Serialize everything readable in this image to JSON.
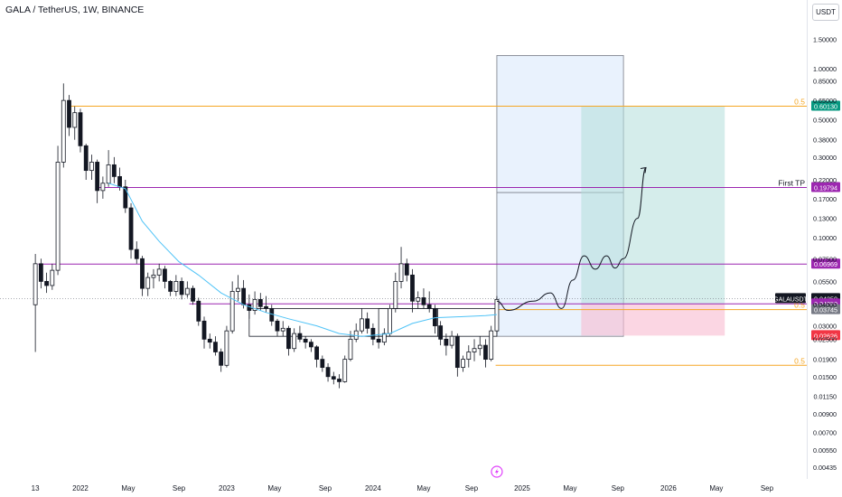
{
  "header": {
    "title": "GALA / TetherUS, 1W, BINANCE",
    "currency": "USDT"
  },
  "colors": {
    "up": "#131722",
    "down": "#131722",
    "orange": "#f5a623",
    "purple": "#9c27b0",
    "ma": "#4fc3f7",
    "target": "#b2dfdb",
    "stop": "#f8bbd0",
    "projection": "#cfe3fb",
    "green_tag": "#089981",
    "red_tag": "#f23645",
    "ticker_tag": "#131722"
  },
  "chart_data": {
    "type": "candlestick",
    "title": "GALA / TetherUS, 1W, BINANCE",
    "y_scale": "log",
    "ylim": [
      0.0042,
      2.0
    ],
    "xlim": [
      "2021-08-01",
      "2026-12-15"
    ],
    "x_ticks": [
      {
        "label": "13",
        "date": "2021-09-13"
      },
      {
        "label": "2022",
        "date": "2022-01-03"
      },
      {
        "label": "May",
        "date": "2022-05-02"
      },
      {
        "label": "Sep",
        "date": "2022-09-05"
      },
      {
        "label": "2023",
        "date": "2023-01-02"
      },
      {
        "label": "May",
        "date": "2023-05-01"
      },
      {
        "label": "Sep",
        "date": "2023-09-04"
      },
      {
        "label": "2024",
        "date": "2024-01-01"
      },
      {
        "label": "May",
        "date": "2024-05-06"
      },
      {
        "label": "Sep",
        "date": "2024-09-02"
      },
      {
        "label": "2025",
        "date": "2025-01-06"
      },
      {
        "label": "May",
        "date": "2025-05-05"
      },
      {
        "label": "Sep",
        "date": "2025-09-01"
      },
      {
        "label": "2026",
        "date": "2026-01-05"
      },
      {
        "label": "May",
        "date": "2026-05-04"
      },
      {
        "label": "Sep",
        "date": "2026-09-07"
      }
    ],
    "y_ticks": [
      "1.50000",
      "1.00000",
      "0.85000",
      "0.65000",
      "0.50000",
      "0.38000",
      "0.30000",
      "0.22000",
      "0.17000",
      "0.13000",
      "0.10000",
      "0.07500",
      "0.05500",
      "0.04000",
      "0.03000",
      "0.02500",
      "0.01900",
      "0.01500",
      "0.01150",
      "0.00900",
      "0.00700",
      "0.00550",
      "0.00435"
    ],
    "series": [
      {
        "type": "candlestick",
        "points": [
          [
            "2021-09-13",
            0.04,
            0.08,
            0.021,
            0.07
          ],
          [
            "2021-09-27",
            0.07,
            0.075,
            0.05,
            0.055
          ],
          [
            "2021-10-11",
            0.055,
            0.062,
            0.047,
            0.052
          ],
          [
            "2021-10-25",
            0.052,
            0.07,
            0.049,
            0.064
          ],
          [
            "2021-11-08",
            0.064,
            0.35,
            0.06,
            0.28
          ],
          [
            "2021-11-22",
            0.28,
            0.82,
            0.26,
            0.65
          ],
          [
            "2021-12-06",
            0.65,
            0.7,
            0.4,
            0.45
          ],
          [
            "2021-12-20",
            0.45,
            0.6,
            0.38,
            0.55
          ],
          [
            "2022-01-03",
            0.55,
            0.58,
            0.32,
            0.35
          ],
          [
            "2022-01-17",
            0.35,
            0.36,
            0.22,
            0.25
          ],
          [
            "2022-01-31",
            0.25,
            0.31,
            0.22,
            0.28
          ],
          [
            "2022-02-14",
            0.28,
            0.29,
            0.16,
            0.19
          ],
          [
            "2022-02-28",
            0.19,
            0.23,
            0.17,
            0.21
          ],
          [
            "2022-03-14",
            0.21,
            0.33,
            0.2,
            0.27
          ],
          [
            "2022-03-28",
            0.27,
            0.3,
            0.21,
            0.23
          ],
          [
            "2022-04-11",
            0.23,
            0.26,
            0.19,
            0.2
          ],
          [
            "2022-04-25",
            0.2,
            0.22,
            0.14,
            0.15
          ],
          [
            "2022-05-09",
            0.15,
            0.16,
            0.075,
            0.085
          ],
          [
            "2022-05-23",
            0.085,
            0.095,
            0.07,
            0.075
          ],
          [
            "2022-06-06",
            0.075,
            0.078,
            0.045,
            0.05
          ],
          [
            "2022-06-20",
            0.05,
            0.062,
            0.045,
            0.058
          ],
          [
            "2022-07-04",
            0.058,
            0.065,
            0.05,
            0.06
          ],
          [
            "2022-07-18",
            0.06,
            0.07,
            0.055,
            0.065
          ],
          [
            "2022-08-01",
            0.065,
            0.068,
            0.05,
            0.055
          ],
          [
            "2022-08-15",
            0.055,
            0.056,
            0.045,
            0.048
          ],
          [
            "2022-08-29",
            0.048,
            0.06,
            0.045,
            0.055
          ],
          [
            "2022-09-12",
            0.055,
            0.058,
            0.043,
            0.046
          ],
          [
            "2022-09-26",
            0.046,
            0.055,
            0.044,
            0.05
          ],
          [
            "2022-10-10",
            0.05,
            0.052,
            0.04,
            0.042
          ],
          [
            "2022-10-24",
            0.042,
            0.044,
            0.03,
            0.032
          ],
          [
            "2022-11-07",
            0.032,
            0.034,
            0.022,
            0.025
          ],
          [
            "2022-11-21",
            0.025,
            0.027,
            0.022,
            0.024
          ],
          [
            "2022-12-05",
            0.024,
            0.026,
            0.02,
            0.021
          ],
          [
            "2022-12-19",
            0.021,
            0.022,
            0.016,
            0.0175
          ],
          [
            "2023-01-02",
            0.0175,
            0.03,
            0.017,
            0.028
          ],
          [
            "2023-01-16",
            0.028,
            0.055,
            0.027,
            0.048
          ],
          [
            "2023-01-30",
            0.048,
            0.06,
            0.042,
            0.05
          ],
          [
            "2023-02-13",
            0.05,
            0.056,
            0.038,
            0.04
          ],
          [
            "2023-02-27",
            0.04,
            0.046,
            0.033,
            0.037
          ],
          [
            "2023-03-13",
            0.037,
            0.048,
            0.035,
            0.043
          ],
          [
            "2023-03-27",
            0.043,
            0.047,
            0.037,
            0.039
          ],
          [
            "2023-04-10",
            0.039,
            0.045,
            0.036,
            0.038
          ],
          [
            "2023-04-24",
            0.038,
            0.04,
            0.03,
            0.032
          ],
          [
            "2023-05-08",
            0.032,
            0.033,
            0.026,
            0.028
          ],
          [
            "2023-05-22",
            0.028,
            0.032,
            0.026,
            0.029
          ],
          [
            "2023-06-05",
            0.029,
            0.03,
            0.02,
            0.022
          ],
          [
            "2023-06-19",
            0.022,
            0.029,
            0.021,
            0.027
          ],
          [
            "2023-07-03",
            0.027,
            0.03,
            0.024,
            0.025
          ],
          [
            "2023-07-17",
            0.025,
            0.026,
            0.022,
            0.024
          ],
          [
            "2023-07-31",
            0.024,
            0.025,
            0.021,
            0.0225
          ],
          [
            "2023-08-14",
            0.0225,
            0.023,
            0.017,
            0.019
          ],
          [
            "2023-08-28",
            0.019,
            0.02,
            0.016,
            0.017
          ],
          [
            "2023-09-11",
            0.017,
            0.018,
            0.014,
            0.015
          ],
          [
            "2023-09-25",
            0.015,
            0.016,
            0.0135,
            0.0145
          ],
          [
            "2023-10-09",
            0.0145,
            0.0155,
            0.0128,
            0.014
          ],
          [
            "2023-10-23",
            0.014,
            0.02,
            0.0138,
            0.019
          ],
          [
            "2023-11-06",
            0.019,
            0.028,
            0.0185,
            0.025
          ],
          [
            "2023-11-20",
            0.025,
            0.031,
            0.024,
            0.028
          ],
          [
            "2023-12-04",
            0.028,
            0.038,
            0.027,
            0.033
          ],
          [
            "2023-12-18",
            0.033,
            0.036,
            0.027,
            0.029
          ],
          [
            "2024-01-01",
            0.029,
            0.031,
            0.023,
            0.025
          ],
          [
            "2024-01-15",
            0.025,
            0.027,
            0.022,
            0.024
          ],
          [
            "2024-01-29",
            0.024,
            0.029,
            0.023,
            0.027
          ],
          [
            "2024-02-12",
            0.027,
            0.04,
            0.026,
            0.038
          ],
          [
            "2024-02-26",
            0.038,
            0.062,
            0.036,
            0.055
          ],
          [
            "2024-03-11",
            0.055,
            0.088,
            0.05,
            0.07
          ],
          [
            "2024-03-25",
            0.07,
            0.075,
            0.055,
            0.06
          ],
          [
            "2024-04-08",
            0.06,
            0.065,
            0.036,
            0.042
          ],
          [
            "2024-04-22",
            0.042,
            0.048,
            0.038,
            0.044
          ],
          [
            "2024-05-06",
            0.044,
            0.05,
            0.038,
            0.04
          ],
          [
            "2024-05-20",
            0.04,
            0.048,
            0.036,
            0.038
          ],
          [
            "2024-06-03",
            0.038,
            0.04,
            0.027,
            0.03
          ],
          [
            "2024-06-17",
            0.03,
            0.032,
            0.023,
            0.025
          ],
          [
            "2024-07-01",
            0.025,
            0.027,
            0.02,
            0.023
          ],
          [
            "2024-07-15",
            0.023,
            0.028,
            0.022,
            0.026
          ],
          [
            "2024-07-29",
            0.026,
            0.027,
            0.015,
            0.017
          ],
          [
            "2024-08-12",
            0.017,
            0.02,
            0.016,
            0.019
          ],
          [
            "2024-08-26",
            0.019,
            0.023,
            0.017,
            0.021
          ],
          [
            "2024-09-09",
            0.021,
            0.025,
            0.0185,
            0.022
          ],
          [
            "2024-09-23",
            0.022,
            0.026,
            0.02,
            0.023
          ],
          [
            "2024-10-07",
            0.023,
            0.025,
            0.017,
            0.019
          ],
          [
            "2024-10-21",
            0.019,
            0.03,
            0.0185,
            0.028
          ],
          [
            "2024-11-04",
            0.028,
            0.045,
            0.027,
            0.043
          ]
        ]
      },
      {
        "type": "ma",
        "name": "",
        "color": "#4fc3f7",
        "points": [
          [
            "2022-03-14",
            0.21
          ],
          [
            "2022-04-25",
            0.195
          ],
          [
            "2022-06-06",
            0.125
          ],
          [
            "2022-07-18",
            0.095
          ],
          [
            "2022-09-05",
            0.072
          ],
          [
            "2022-10-24",
            0.06
          ],
          [
            "2022-12-19",
            0.047
          ],
          [
            "2023-02-13",
            0.04
          ],
          [
            "2023-04-10",
            0.036
          ],
          [
            "2023-06-05",
            0.033
          ],
          [
            "2023-08-14",
            0.03
          ],
          [
            "2023-10-09",
            0.027
          ],
          [
            "2023-12-04",
            0.026
          ],
          [
            "2024-02-12",
            0.027
          ],
          [
            "2024-04-08",
            0.031
          ],
          [
            "2024-06-03",
            0.0335
          ],
          [
            "2024-08-12",
            0.034
          ],
          [
            "2024-10-07",
            0.0345
          ],
          [
            "2024-11-04",
            0.035
          ]
        ]
      }
    ],
    "horizontal_levels": [
      {
        "kind": "fib",
        "label": "0.5",
        "price": 0.6013,
        "tag": "0.60130",
        "color": "#f5a623",
        "start": "2021-12-06"
      },
      {
        "kind": "resistance",
        "label": "First TP",
        "price": 0.19794,
        "tag": "0.19794",
        "color": "#9c27b0",
        "start": "2022-02-14"
      },
      {
        "kind": "support",
        "label": "",
        "price": 0.06969,
        "tag": "0.06969",
        "color": "#9c27b0",
        "start": "2021-09-20"
      },
      {
        "kind": "ticker",
        "label": "GALAUSDT",
        "price": 0.0435,
        "tag": "0.04350",
        "color": "#131722"
      },
      {
        "kind": "support",
        "label": "",
        "price": 0.0405,
        "tag": "0.04050",
        "color": "#9c27b0",
        "start": "2022-10-01"
      },
      {
        "kind": "fib",
        "label": "0.5",
        "price": 0.03745,
        "tag": "0.03745",
        "color": "#f5a623",
        "start": "2024-11-01"
      },
      {
        "kind": "fib",
        "label": "0.5",
        "price": 0.0175,
        "tag": "",
        "color": "#f5a623",
        "start": "2024-11-01"
      }
    ],
    "position": {
      "entry": 0.0405,
      "target": 0.6013,
      "stop": 0.02626,
      "tag_stop": "0.02626",
      "start": "2025-06-02",
      "end": "2026-05-25"
    },
    "projection_box": {
      "top": 1.2,
      "bottom": 0.026,
      "mid": 0.185,
      "start": "2024-11-04",
      "end": "2025-09-15"
    },
    "range_boxes": [
      {
        "top": 0.038,
        "bottom": 0.026,
        "start": "2023-02-27",
        "end": "2024-11-04"
      },
      {
        "top": 0.038,
        "bottom": 0.026,
        "start": "2024-01-15",
        "end": "2024-06-10"
      }
    ],
    "forecast_path": [
      [
        "2024-11-04",
        0.042
      ],
      [
        "2024-12-02",
        0.037
      ],
      [
        "2025-02-03",
        0.042
      ],
      [
        "2025-03-17",
        0.047
      ],
      [
        "2025-04-14",
        0.038
      ],
      [
        "2025-05-12",
        0.056
      ],
      [
        "2025-06-09",
        0.078
      ],
      [
        "2025-07-07",
        0.065
      ],
      [
        "2025-08-04",
        0.078
      ],
      [
        "2025-08-25",
        0.066
      ],
      [
        "2025-09-15",
        0.075
      ],
      [
        "2025-10-20",
        0.13
      ],
      [
        "2025-11-10",
        0.26
      ]
    ],
    "grid": false,
    "legend": "none"
  }
}
